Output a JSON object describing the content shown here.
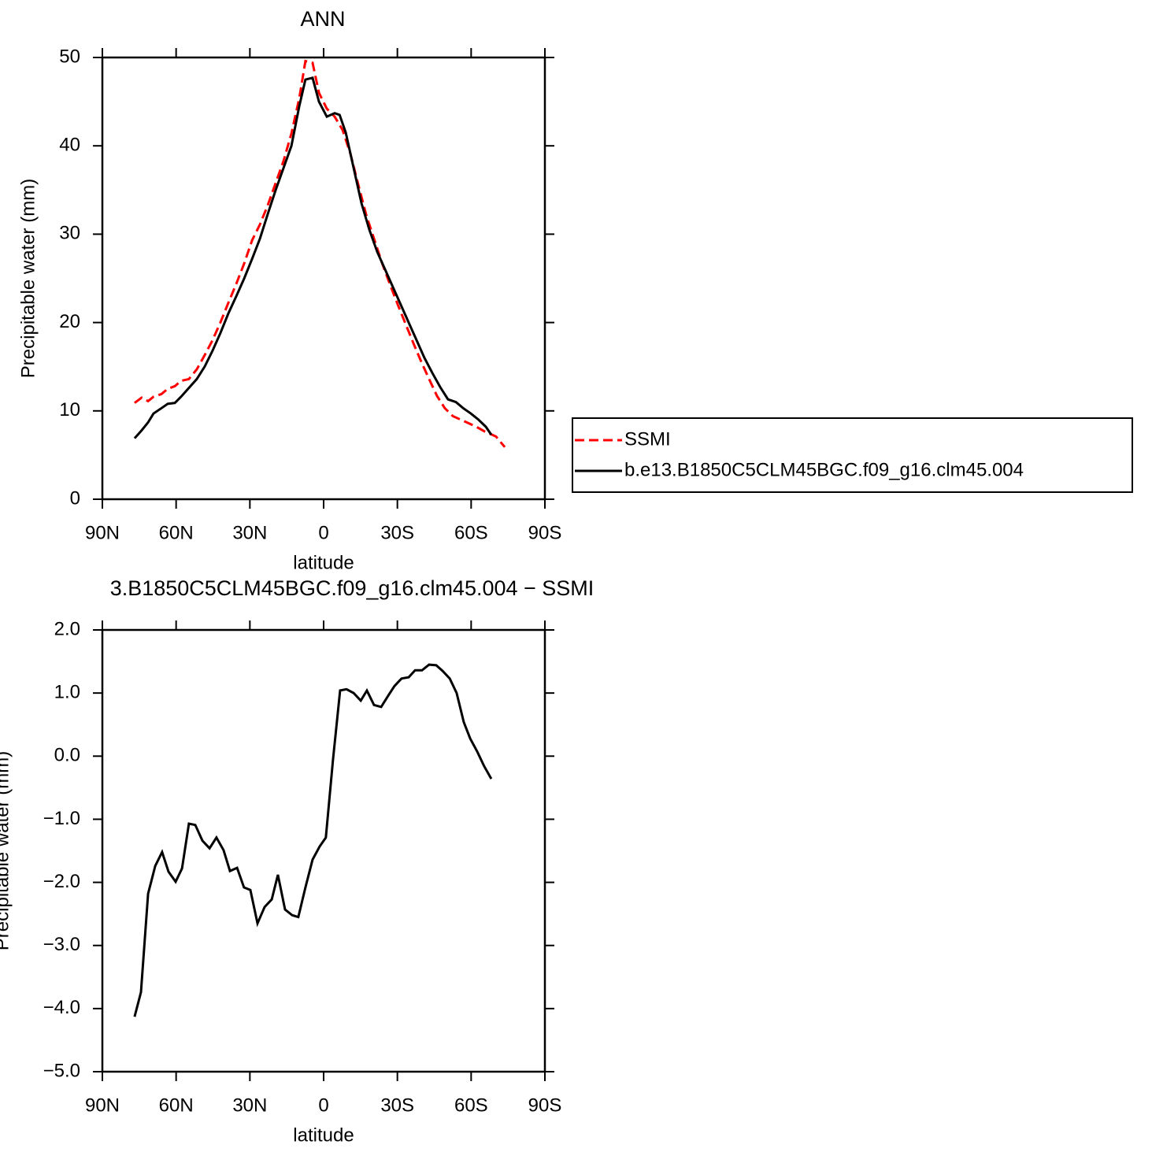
{
  "chart_data": [
    {
      "type": "line",
      "title": "ANN",
      "x_label": "latitude",
      "y_label": "Precipitable water (mm)",
      "xlim": [
        90,
        -90
      ],
      "ylim": [
        0,
        50
      ],
      "xticks": [
        {
          "value": 90,
          "label": "90N"
        },
        {
          "value": 60,
          "label": "60N"
        },
        {
          "value": 30,
          "label": "30N"
        },
        0,
        {
          "value": -30,
          "label": "30S"
        },
        {
          "value": -60,
          "label": "60S"
        },
        {
          "value": -90,
          "label": "90S"
        }
      ],
      "yticks": [
        0,
        10,
        20,
        30,
        40,
        50
      ],
      "legend": "right",
      "series": [
        {
          "name": "SSMI",
          "color": "#ff0000",
          "dashed": true,
          "x": [
            76.9,
            74.0,
            71.4,
            69.2,
            66.0,
            63.4,
            60.5,
            58.0,
            54.8,
            51.6,
            48.4,
            45.2,
            42.0,
            38.8,
            35.5,
            32.3,
            29.1,
            25.9,
            22.7,
            19.5,
            16.3,
            13.1,
            9.9,
            7.4,
            4.5,
            1.9,
            -1.3,
            -4.5,
            -7.7,
            -10.9,
            -14.1,
            -17.4,
            -20.6,
            -23.8,
            -27.0,
            -30.2,
            -33.4,
            -36.6,
            -39.8,
            -42.9,
            -46.1,
            -49.3,
            -52.6,
            -55.8,
            -59.0,
            -62.1,
            -65.3,
            -70.1,
            -73.7
          ],
          "values": [
            10.9,
            11.5,
            11.1,
            11.6,
            11.9,
            12.5,
            12.8,
            13.4,
            13.6,
            14.7,
            16.3,
            18.0,
            20.0,
            22.2,
            24.4,
            26.7,
            29.3,
            31.1,
            33.3,
            35.8,
            38.3,
            41.4,
            45.4,
            49.6,
            49.4,
            46.0,
            44.2,
            43.3,
            41.8,
            39.1,
            35.6,
            32.1,
            29.4,
            26.7,
            24.3,
            22.0,
            19.8,
            17.6,
            15.5,
            13.6,
            11.7,
            10.3,
            9.4,
            9.0,
            8.6,
            8.2,
            7.7,
            7.1,
            5.9
          ]
        },
        {
          "name": "b.e13.B1850C5CLM45BGC.f09_g16.clm45.004",
          "color": "#000000",
          "dashed": false,
          "x": [
            76.9,
            74.0,
            71.4,
            69.2,
            66.0,
            63.4,
            60.5,
            58.0,
            54.8,
            51.6,
            48.4,
            45.2,
            42.0,
            38.8,
            35.5,
            32.3,
            29.1,
            25.9,
            22.7,
            19.5,
            16.3,
            13.1,
            9.9,
            7.4,
            4.5,
            1.9,
            -1.3,
            -4.5,
            -6.5,
            -9.0,
            -12.2,
            -15.4,
            -18.6,
            -21.8,
            -25.0,
            -28.2,
            -31.4,
            -34.6,
            -37.8,
            -41.0,
            -44.2,
            -47.4,
            -50.6,
            -53.8,
            -56.8,
            -59.9,
            -63.0,
            -66.0,
            -68.2
          ],
          "values": [
            6.9,
            7.8,
            8.7,
            9.7,
            10.3,
            10.8,
            10.9,
            11.6,
            12.6,
            13.6,
            15.0,
            16.8,
            18.8,
            21.0,
            23.0,
            25.0,
            27.2,
            29.5,
            32.3,
            35.0,
            37.5,
            40.0,
            44.5,
            47.5,
            47.7,
            45.0,
            43.3,
            43.7,
            43.5,
            41.5,
            37.5,
            33.5,
            30.5,
            28.0,
            26.0,
            24.0,
            22.0,
            20.0,
            18.0,
            16.0,
            14.3,
            12.7,
            11.3,
            11.0,
            10.3,
            9.7,
            9.0,
            8.2,
            7.3
          ]
        }
      ]
    },
    {
      "type": "line",
      "title": "3.B1850C5CLM45BGC.f09_g16.clm45.004 − SSMI",
      "x_label": "latitude",
      "y_label": "Precipitable water (mm)",
      "xlim": [
        90,
        -90
      ],
      "ylim": [
        -5,
        2
      ],
      "xticks": [
        {
          "value": 90,
          "label": "90N"
        },
        {
          "value": 60,
          "label": "60N"
        },
        {
          "value": 30,
          "label": "30N"
        },
        0,
        {
          "value": -30,
          "label": "30S"
        },
        {
          "value": -60,
          "label": "60S"
        },
        {
          "value": -90,
          "label": "90S"
        }
      ],
      "yticks": [
        {
          "value": -5,
          "label": "−5.0"
        },
        {
          "value": -4,
          "label": "−4.0"
        },
        {
          "value": -3,
          "label": "−3.0"
        },
        {
          "value": -2,
          "label": "−2.0"
        },
        {
          "value": -1,
          "label": "−1.0"
        },
        {
          "value": 0,
          "label": "0.0"
        },
        {
          "value": 1,
          "label": "1.0"
        },
        {
          "value": 2,
          "label": "2.0"
        }
      ],
      "series": [
        {
          "color": "#000000",
          "dashed": false,
          "x": [
            76.9,
            74.3,
            71.4,
            68.5,
            65.7,
            63.1,
            60.2,
            57.6,
            54.8,
            52.2,
            49.3,
            46.4,
            43.6,
            40.7,
            38.1,
            35.2,
            32.4,
            29.8,
            26.9,
            24.0,
            21.1,
            18.6,
            15.7,
            12.8,
            10.3,
            7.4,
            4.5,
            1.6,
            -0.9,
            -3.8,
            -6.7,
            -9.3,
            -12.2,
            -15.1,
            -17.6,
            -20.5,
            -23.4,
            -26.3,
            -28.8,
            -31.7,
            -34.6,
            -37.2,
            -40.0,
            -42.9,
            -45.8,
            -48.4,
            -51.3,
            -54.1,
            -57.0,
            -59.6,
            -62.5,
            -65.3,
            -68.2
          ],
          "values": [
            -4.13,
            -3.74,
            -2.18,
            -1.74,
            -1.52,
            -1.83,
            -1.99,
            -1.78,
            -1.07,
            -1.09,
            -1.34,
            -1.46,
            -1.29,
            -1.49,
            -1.82,
            -1.77,
            -2.08,
            -2.12,
            -2.65,
            -2.39,
            -2.27,
            -1.88,
            -2.43,
            -2.52,
            -2.55,
            -2.08,
            -1.64,
            -1.43,
            -1.29,
            -0.06,
            1.04,
            1.06,
            1.0,
            0.88,
            1.04,
            0.81,
            0.78,
            0.96,
            1.11,
            1.23,
            1.25,
            1.36,
            1.36,
            1.45,
            1.44,
            1.35,
            1.23,
            1.0,
            0.54,
            0.28,
            0.07,
            -0.16,
            -0.36
          ]
        }
      ]
    }
  ]
}
